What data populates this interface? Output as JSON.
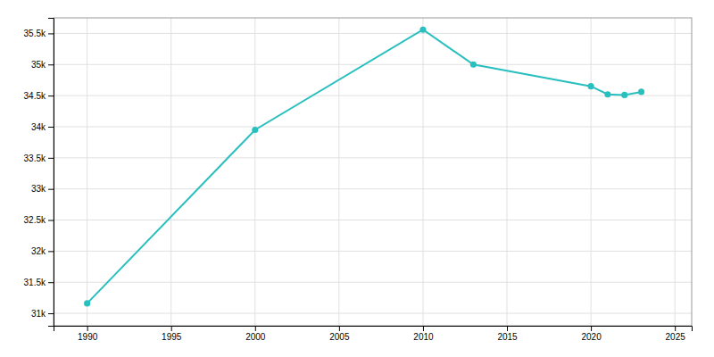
{
  "chart_data": {
    "type": "line",
    "x": [
      1990,
      2000,
      2010,
      2013,
      2020,
      2021,
      2022,
      2023
    ],
    "values": [
      31160,
      33950,
      35560,
      35000,
      34650,
      34520,
      34510,
      34560
    ],
    "color": "#2abfbf",
    "marker": "circle",
    "xlim": [
      1988,
      2026
    ],
    "ylim": [
      30800,
      35750
    ],
    "xticks": [
      1990,
      1995,
      2000,
      2005,
      2010,
      2015,
      2020,
      2025
    ],
    "yticks": [
      {
        "value": 31000,
        "label": "31k"
      },
      {
        "value": 31500,
        "label": "31.5k"
      },
      {
        "value": 32000,
        "label": "32k"
      },
      {
        "value": 32500,
        "label": "32.5k"
      },
      {
        "value": 33000,
        "label": "33k"
      },
      {
        "value": 33500,
        "label": "33.5k"
      },
      {
        "value": 34000,
        "label": "34k"
      },
      {
        "value": 34500,
        "label": "34.5k"
      },
      {
        "value": 35000,
        "label": "35k"
      },
      {
        "value": 35500,
        "label": "35.5k"
      }
    ],
    "grid": true
  }
}
